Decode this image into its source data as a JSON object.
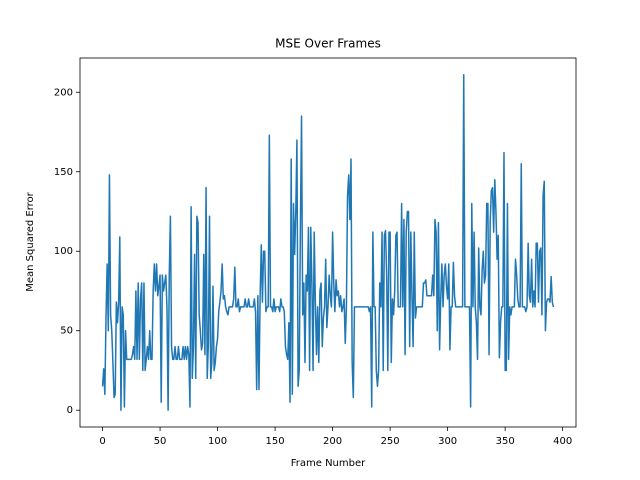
{
  "chart_data": {
    "type": "line",
    "title": "MSE Over Frames",
    "x_label": "Frame Number",
    "y_label": "Mean Squared Error",
    "color": "#1f77b4",
    "xlim": [
      -19.6,
      411.6
    ],
    "xticks": [
      0,
      50,
      100,
      150,
      200,
      250,
      300,
      350,
      400
    ],
    "ylim": [
      -10.55,
      221.55
    ],
    "yticks": [
      0,
      50,
      100,
      150,
      200
    ],
    "x": [
      0,
      1,
      2,
      3,
      4,
      5,
      6,
      7,
      8,
      9,
      10,
      11,
      12,
      13,
      14,
      15,
      16,
      17,
      18,
      19,
      20,
      21,
      22,
      23,
      24,
      25,
      26,
      27,
      28,
      29,
      30,
      31,
      32,
      33,
      34,
      35,
      36,
      37,
      38,
      39,
      40,
      41,
      42,
      43,
      44,
      45,
      46,
      47,
      48,
      49,
      50,
      51,
      52,
      53,
      54,
      55,
      56,
      57,
      58,
      59,
      60,
      61,
      62,
      63,
      64,
      65,
      66,
      67,
      68,
      69,
      70,
      71,
      72,
      73,
      74,
      75,
      76,
      77,
      78,
      79,
      80,
      81,
      82,
      83,
      84,
      85,
      86,
      87,
      88,
      89,
      90,
      91,
      92,
      93,
      94,
      95,
      96,
      97,
      98,
      99,
      100,
      101,
      102,
      103,
      104,
      105,
      106,
      107,
      108,
      109,
      110,
      111,
      112,
      113,
      114,
      115,
      116,
      117,
      118,
      119,
      120,
      121,
      122,
      123,
      124,
      125,
      126,
      127,
      128,
      129,
      130,
      131,
      132,
      133,
      134,
      135,
      136,
      137,
      138,
      139,
      140,
      141,
      142,
      143,
      144,
      145,
      146,
      147,
      148,
      149,
      150,
      151,
      152,
      153,
      154,
      155,
      156,
      157,
      158,
      159,
      160,
      161,
      162,
      163,
      164,
      165,
      166,
      167,
      168,
      169,
      170,
      171,
      172,
      173,
      174,
      175,
      176,
      177,
      178,
      179,
      180,
      181,
      182,
      183,
      184,
      185,
      186,
      187,
      188,
      189,
      190,
      191,
      192,
      193,
      194,
      195,
      196,
      197,
      198,
      199,
      200,
      201,
      202,
      203,
      204,
      205,
      206,
      207,
      208,
      209,
      210,
      211,
      212,
      213,
      214,
      215,
      216,
      217,
      218,
      219,
      220,
      221,
      222,
      223,
      224,
      225,
      226,
      227,
      228,
      229,
      230,
      231,
      232,
      233,
      234,
      235,
      236,
      237,
      238,
      239,
      240,
      241,
      242,
      243,
      244,
      245,
      246,
      247,
      248,
      249,
      250,
      251,
      252,
      253,
      254,
      255,
      256,
      257,
      258,
      259,
      260,
      261,
      262,
      263,
      264,
      265,
      266,
      267,
      268,
      269,
      270,
      271,
      272,
      273,
      274,
      275,
      276,
      277,
      278,
      279,
      280,
      281,
      282,
      283,
      284,
      285,
      286,
      287,
      288,
      289,
      290,
      291,
      292,
      293,
      294,
      295,
      296,
      297,
      298,
      299,
      300,
      301,
      302,
      303,
      304,
      305,
      306,
      307,
      308,
      309,
      310,
      311,
      312,
      313,
      314,
      315,
      316,
      317,
      318,
      319,
      320,
      321,
      322,
      323,
      324,
      325,
      326,
      327,
      328,
      329,
      330,
      331,
      332,
      333,
      334,
      335,
      336,
      337,
      338,
      339,
      340,
      341,
      342,
      343,
      344,
      345,
      346,
      347,
      348,
      349,
      350,
      351,
      352,
      353,
      354,
      355,
      356,
      357,
      358,
      359,
      360,
      361,
      362,
      363,
      364,
      365,
      366,
      367,
      368,
      369,
      370,
      371,
      372,
      373,
      374,
      375,
      376,
      377,
      378,
      379,
      380,
      381,
      382,
      383,
      384,
      385,
      386,
      387,
      388,
      389,
      390,
      391,
      392
    ],
    "values": [
      15,
      26,
      10,
      58,
      92,
      50,
      148,
      60,
      50,
      30,
      8,
      10,
      68,
      55,
      68,
      109,
      0,
      65,
      60,
      2,
      50,
      32,
      32,
      32,
      32,
      32,
      35,
      40,
      32,
      75,
      32,
      80,
      32,
      70,
      80,
      25,
      80,
      25,
      32,
      40,
      32,
      50,
      32,
      32,
      75,
      92,
      75,
      92,
      72,
      78,
      85,
      5,
      85,
      75,
      80,
      85,
      65,
      0,
      85,
      122,
      40,
      32,
      32,
      40,
      32,
      32,
      40,
      32,
      32,
      32,
      40,
      32,
      40,
      32,
      40,
      35,
      2,
      128,
      20,
      40,
      98,
      20,
      122,
      118,
      60,
      50,
      38,
      42,
      98,
      35,
      140,
      20,
      42,
      122,
      20,
      30,
      78,
      25,
      30,
      40,
      45,
      62,
      68,
      75,
      92,
      70,
      72,
      65,
      62,
      60,
      65,
      65,
      65,
      65,
      70,
      90,
      65,
      65,
      70,
      62,
      65,
      65,
      65,
      65,
      70,
      65,
      65,
      70,
      65,
      65,
      65,
      65,
      70,
      62,
      13,
      72,
      13,
      72,
      104,
      68,
      100,
      100,
      62,
      65,
      65,
      173,
      65,
      65,
      62,
      70,
      62,
      65,
      65,
      65,
      62,
      70,
      65,
      65,
      62,
      40,
      35,
      32,
      55,
      5,
      158,
      10,
      130,
      98,
      125,
      170,
      15,
      25,
      115,
      185,
      60,
      80,
      30,
      85,
      75,
      115,
      25,
      115,
      80,
      25,
      112,
      68,
      35,
      65,
      30,
      75,
      80,
      40,
      58,
      65,
      95,
      52,
      65,
      85,
      72,
      65,
      112,
      80,
      62,
      82,
      72,
      75,
      65,
      72,
      62,
      65,
      70,
      42,
      65,
      135,
      148,
      120,
      158,
      30,
      8,
      65,
      65,
      65,
      65,
      65,
      65,
      65,
      65,
      65,
      65,
      65,
      65,
      65,
      62,
      65,
      2,
      112,
      65,
      65,
      25,
      15,
      25,
      80,
      65,
      112,
      25,
      110,
      113,
      85,
      25,
      112,
      112,
      30,
      70,
      60,
      75,
      110,
      112,
      65,
      65,
      65,
      130,
      65,
      120,
      35,
      112,
      125,
      125,
      40,
      112,
      72,
      40,
      112,
      58,
      65,
      65,
      65,
      65,
      65,
      65,
      80,
      80,
      82,
      72,
      72,
      72,
      72,
      72,
      85,
      72,
      120,
      112,
      50,
      118,
      38,
      70,
      92,
      65,
      85,
      92,
      78,
      70,
      92,
      38,
      65,
      65,
      93,
      72,
      65,
      65,
      65,
      65,
      65,
      65,
      65,
      211,
      65,
      65,
      65,
      65,
      65,
      2,
      130,
      65,
      112,
      65,
      55,
      32,
      102,
      65,
      60,
      88,
      100,
      80,
      85,
      130,
      130,
      35,
      118,
      138,
      140,
      112,
      145,
      125,
      95,
      110,
      33,
      55,
      65,
      65,
      162,
      25,
      25,
      130,
      32,
      65,
      60,
      65,
      65,
      65,
      95,
      85,
      70,
      65,
      65,
      155,
      65,
      65,
      65,
      62,
      65,
      105,
      72,
      68,
      95,
      65,
      75,
      65,
      105,
      105,
      68,
      100,
      102,
      60,
      135,
      144,
      50,
      68,
      70,
      70,
      68,
      84,
      68,
      65
    ]
  }
}
